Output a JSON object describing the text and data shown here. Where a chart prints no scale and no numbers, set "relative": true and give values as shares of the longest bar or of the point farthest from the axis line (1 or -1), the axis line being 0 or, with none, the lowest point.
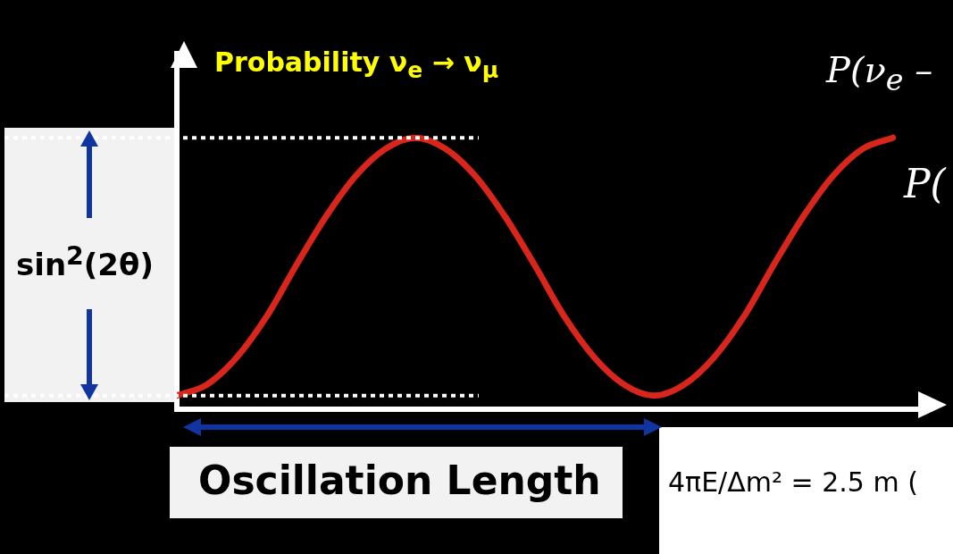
{
  "chart_data": {
    "type": "line",
    "relative": true,
    "ylabel": "Probability ν$_{e}$ → ν$_{μ}$",
    "categories": [
      null,
      null,
      null,
      null,
      null,
      null,
      null,
      null,
      null,
      null,
      null,
      null,
      null,
      null,
      null,
      null,
      null,
      null,
      null,
      null,
      null,
      null,
      null,
      null,
      null
    ],
    "series": [
      {
        "color": "#d9261c",
        "values": [
          0.05,
          0.09,
          0.19,
          0.34,
          0.53,
          0.71,
          0.86,
          0.96,
          1,
          0.96,
          0.86,
          0.71,
          0.53,
          0.34,
          0.19,
          0.09,
          0.05,
          0.09,
          0.19,
          0.34,
          0.53,
          0.71,
          0.86,
          0.96,
          1
        ]
      }
    ],
    "ref_lines": [
      {
        "axis": "y",
        "value": 1,
        "color": "#ffffff",
        "line_style": "dotted"
      },
      {
        "axis": "y",
        "value": 0.05,
        "color": "#ffffff",
        "line_style": "dotted"
      }
    ],
    "annotations": [
      "sin$^{2}$(2θ)",
      "Oscillation Length",
      "P(ν$_{e}$ –",
      "P(",
      "4πE/Δm² = 2.5 m ("
    ],
    "legend": false,
    "marker": "none",
    "line_style": "solid"
  }
}
